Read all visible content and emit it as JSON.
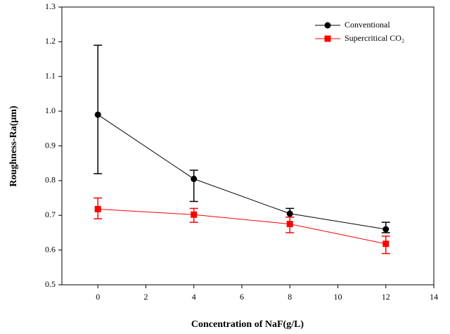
{
  "chart_data": {
    "type": "line",
    "x_label": "Concentration of NaF(g/L)",
    "y_label": "Roughness-Ra(μm)",
    "x": [
      0,
      4,
      8,
      12
    ],
    "series": [
      {
        "name": "Conventional",
        "color": "#000000",
        "marker": "circle",
        "values": [
          0.99,
          0.805,
          0.705,
          0.66
        ],
        "err_plus": [
          0.2,
          0.025,
          0.015,
          0.02
        ],
        "err_minus": [
          0.17,
          0.065,
          0.01,
          0.01
        ]
      },
      {
        "name": "Supercritical CO₂",
        "color": "#ff0000",
        "marker": "square",
        "values": [
          0.718,
          0.702,
          0.675,
          0.618
        ],
        "err_plus": [
          0.032,
          0.018,
          0.02,
          0.022
        ],
        "err_minus": [
          0.028,
          0.022,
          0.025,
          0.028
        ]
      }
    ],
    "xlim": [
      -1.5,
      14
    ],
    "xticks": [
      0,
      2,
      4,
      6,
      8,
      10,
      12,
      14
    ],
    "ylim": [
      0.5,
      1.3
    ],
    "yticks": [
      0.5,
      0.6,
      0.7,
      0.8,
      0.9,
      {
        "value": 1,
        "label": "1.0"
      },
      1.1,
      1.2,
      1.3
    ],
    "legend": "upper right",
    "grid": false
  }
}
